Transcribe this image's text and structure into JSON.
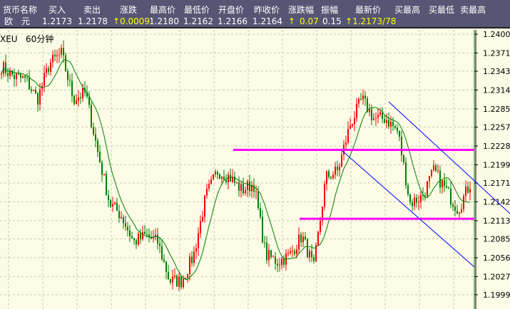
{
  "quote": {
    "headers": [
      "货币名称",
      "买入",
      "卖出",
      "涨跌",
      "最高价",
      "最低价",
      "开盘价",
      "昨收价",
      "涨跌幅",
      "振幅",
      "最新价",
      "买最高",
      "买最低",
      "卖最高"
    ],
    "name": "欧　元",
    "buy": "1.2173",
    "sell": "1.2178",
    "change": "0.0009",
    "high": "1.2180",
    "low": "1.2162",
    "open": "1.2166",
    "prev_close": "1.2164",
    "change_pct": "0.07",
    "amplitude": "0.15",
    "latest": "1.2173/78",
    "up_arrow": "↑"
  },
  "chart": {
    "symbol": "XEU",
    "period": "60分钟",
    "y_ticks": [
      "1.2400",
      "1.2371",
      "1.2343",
      "1.2314",
      "1.2285",
      "1.2257",
      "1.2228",
      "1.2199",
      "1.2171",
      "1.2142",
      "1.2113",
      "1.2085",
      "1.2056",
      "1.2027",
      "1.1999"
    ],
    "ylim": [
      1.1999,
      1.24
    ],
    "approx_close_path": [
      1.235,
      1.2335,
      1.233,
      1.23,
      1.2355,
      1.237,
      1.23,
      1.231,
      1.222,
      1.214,
      1.212,
      1.208,
      1.209,
      1.208,
      1.202,
      1.202,
      1.206,
      1.215,
      1.219,
      1.218,
      1.216,
      1.217,
      1.206,
      1.205,
      1.206,
      1.209,
      1.204,
      1.218,
      1.219,
      1.226,
      1.23,
      1.227,
      1.227,
      1.225,
      1.214,
      1.215,
      1.219,
      1.216,
      1.213,
      1.217
    ],
    "horizontal_levels": [
      1.2222,
      1.2116
    ],
    "colors": {
      "up": "#ff0000",
      "down": "#008000",
      "ma": "#008000",
      "level": "#ff00ff",
      "trend": "#0000ff",
      "grid": "#c8c8b4"
    }
  }
}
